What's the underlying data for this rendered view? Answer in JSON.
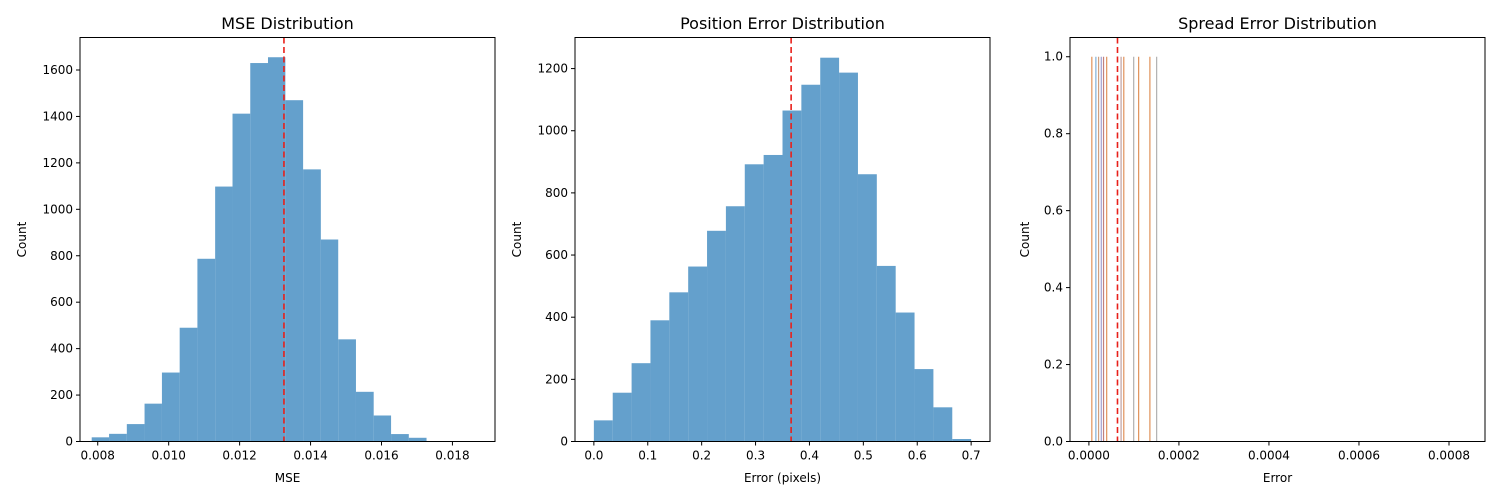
{
  "chart_data": [
    {
      "type": "bar",
      "title": "MSE Distribution",
      "xlabel": "MSE",
      "ylabel": "Count",
      "xlim": [
        0.0075,
        0.0192
      ],
      "ylim": [
        0,
        1740
      ],
      "xticks": [
        0.008,
        0.01,
        0.012,
        0.014,
        0.016,
        0.018
      ],
      "xtick_labels": [
        "0.008",
        "0.010",
        "0.012",
        "0.014",
        "0.016",
        "0.018"
      ],
      "yticks": [
        0,
        200,
        400,
        600,
        800,
        1000,
        1200,
        1400,
        1600
      ],
      "ytick_labels": [
        "0",
        "200",
        "400",
        "600",
        "800",
        "1000",
        "1200",
        "1400",
        "1600"
      ],
      "bins": [
        0.00783,
        0.00832,
        0.00882,
        0.00932,
        0.00981,
        0.01031,
        0.01081,
        0.01131,
        0.0118,
        0.0123,
        0.0128,
        0.01329,
        0.01379,
        0.01429,
        0.01478,
        0.01528,
        0.01578,
        0.01627,
        0.01677,
        0.01727,
        0.01776,
        0.01826,
        0.01876
      ],
      "counts": [
        18,
        33,
        75,
        163,
        297,
        490,
        787,
        1098,
        1412,
        1630,
        1655,
        1470,
        1172,
        870,
        440,
        214,
        112,
        32,
        16,
        2,
        0,
        0
      ],
      "bar_color": "#4a90c4",
      "mean_line": 0.01325,
      "mean_line_color": "#e8201a"
    },
    {
      "type": "bar",
      "title": "Position Error Distribution",
      "xlabel": "Error (pixels)",
      "ylabel": "Count",
      "xlim": [
        -0.035,
        0.735
      ],
      "ylim": [
        0,
        1300
      ],
      "xticks": [
        0.0,
        0.1,
        0.2,
        0.3,
        0.4,
        0.5,
        0.6,
        0.7
      ],
      "xtick_labels": [
        "0.0",
        "0.1",
        "0.2",
        "0.3",
        "0.4",
        "0.5",
        "0.6",
        "0.7"
      ],
      "yticks": [
        0,
        200,
        400,
        600,
        800,
        1000,
        1200
      ],
      "ytick_labels": [
        "0",
        "200",
        "400",
        "600",
        "800",
        "1000",
        "1200"
      ],
      "bins": [
        0.0,
        0.035,
        0.07,
        0.105,
        0.14,
        0.175,
        0.21,
        0.245,
        0.28,
        0.315,
        0.35,
        0.385,
        0.42,
        0.455,
        0.49,
        0.525,
        0.56,
        0.595,
        0.63,
        0.665,
        0.7
      ],
      "counts": [
        68,
        157,
        252,
        390,
        480,
        563,
        678,
        757,
        892,
        922,
        1065,
        1148,
        1235,
        1187,
        860,
        565,
        415,
        233,
        110,
        8
      ],
      "bar_color": "#4a90c4",
      "mean_line": 0.366,
      "mean_line_color": "#e8201a"
    },
    {
      "type": "bar",
      "title": "Spread Error Distribution",
      "xlabel": "Error",
      "ylabel": "Count",
      "xlim": [
        -4.2e-05,
        0.00088
      ],
      "ylim": [
        0,
        1.05
      ],
      "xticks": [
        0.0,
        0.0002,
        0.0004,
        0.0006,
        0.0008
      ],
      "xtick_labels": [
        "0.0000",
        "0.0002",
        "0.0004",
        "0.0006",
        "0.0008"
      ],
      "yticks": [
        0.0,
        0.2,
        0.4,
        0.6,
        0.8,
        1.0
      ],
      "ytick_labels": [
        "0.0",
        "0.2",
        "0.4",
        "0.6",
        "0.8",
        "1.0"
      ],
      "spikes": [
        {
          "x": 6.5e-06,
          "count": 1.0,
          "color": "#e0925a"
        },
        {
          "x": 1.55e-05,
          "count": 1.0,
          "color": "#7fb0d8"
        },
        {
          "x": 2.15e-05,
          "count": 1.0,
          "color": "#d0a080"
        },
        {
          "x": 2.75e-05,
          "count": 1.0,
          "color": "#a0a0d0"
        },
        {
          "x": 3.25e-05,
          "count": 1.0,
          "color": "#c08080"
        },
        {
          "x": 3.95e-05,
          "count": 1.0,
          "color": "#e0925a"
        },
        {
          "x": 7.15e-05,
          "count": 1.0,
          "color": "#c0a0a0"
        },
        {
          "x": 7.75e-05,
          "count": 1.0,
          "color": "#e0925a"
        },
        {
          "x": 9.95e-05,
          "count": 1.0,
          "color": "#b0b0b0"
        },
        {
          "x": 0.0001105,
          "count": 1.0,
          "color": "#e0925a"
        },
        {
          "x": 0.0001355,
          "count": 1.0,
          "color": "#e0925a"
        },
        {
          "x": 0.0001505,
          "count": 1.0,
          "color": "#b0b0b0"
        }
      ],
      "mean_line": 6.35e-05,
      "mean_line_color": "#e8201a"
    }
  ]
}
